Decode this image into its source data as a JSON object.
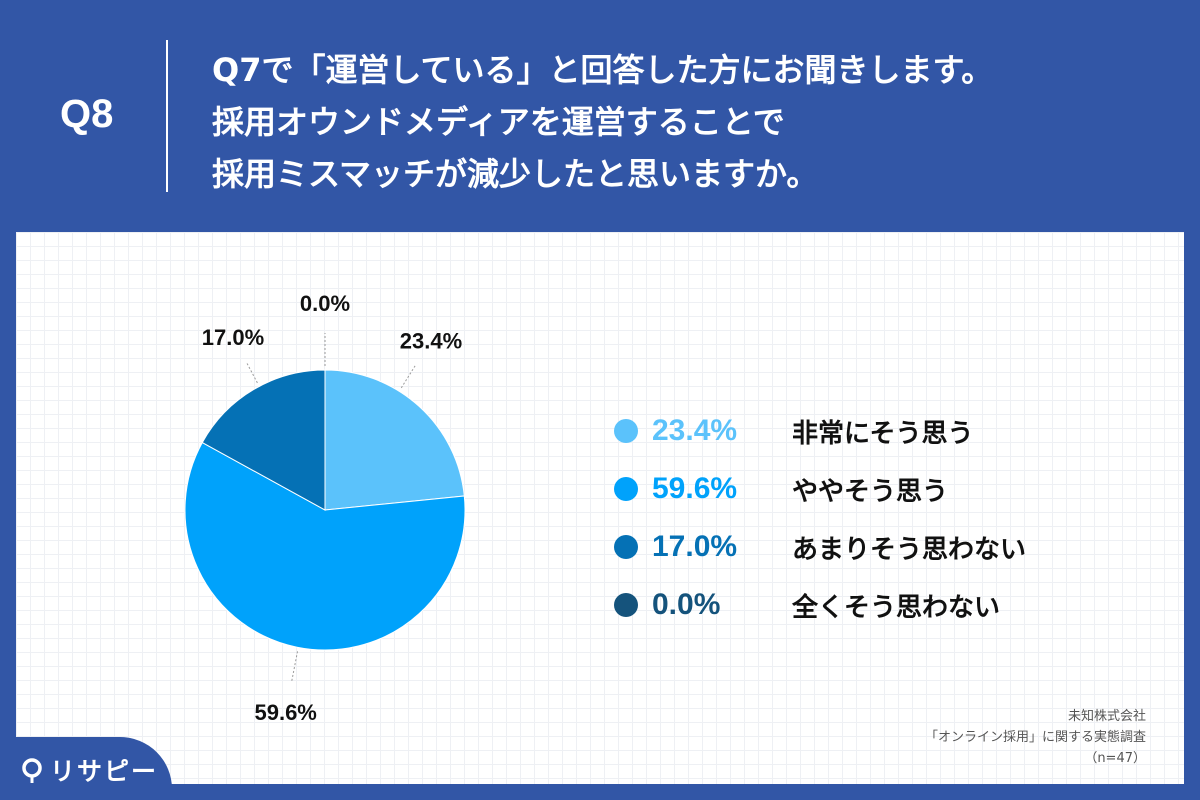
{
  "header": {
    "q_label": "Q8",
    "question_lines": [
      "Q7で「運営している」と回答した方にお聞きします。",
      "採用オウンドメディアを運営することで",
      "採用ミスマッチが減少したと思いますか。"
    ]
  },
  "chart_data": {
    "type": "pie",
    "title": "",
    "categories": [
      "非常にそう思う",
      "ややそう思う",
      "あまりそう思わない",
      "全くそう思わない"
    ],
    "values": [
      23.4,
      59.6,
      17.0,
      0.0
    ],
    "labels": [
      "23.4%",
      "59.6%",
      "17.0%",
      "0.0%"
    ],
    "colors": [
      "#5bc2fb",
      "#00a2fb",
      "#0571b5",
      "#15537c"
    ],
    "legend_placement": "right"
  },
  "legend": {
    "items": [
      {
        "pct": "23.4%",
        "label": "非常にそう思う",
        "color": "#5bc2fb"
      },
      {
        "pct": "59.6%",
        "label": "ややそう思う",
        "color": "#00a2fb"
      },
      {
        "pct": "17.0%",
        "label": "あまりそう思わない",
        "color": "#0571b5"
      },
      {
        "pct": "0.0%",
        "label": "全くそう思わない",
        "color": "#15537c"
      }
    ]
  },
  "source": {
    "lines": [
      "未知株式会社",
      "「オンライン採用」に関する実態調査",
      "（n=47）"
    ]
  },
  "logo": {
    "text": "リサピー",
    "icon": "pin-icon"
  },
  "colors": {
    "header_bg": "#3256a6",
    "panel_bg": "#ffffff"
  }
}
